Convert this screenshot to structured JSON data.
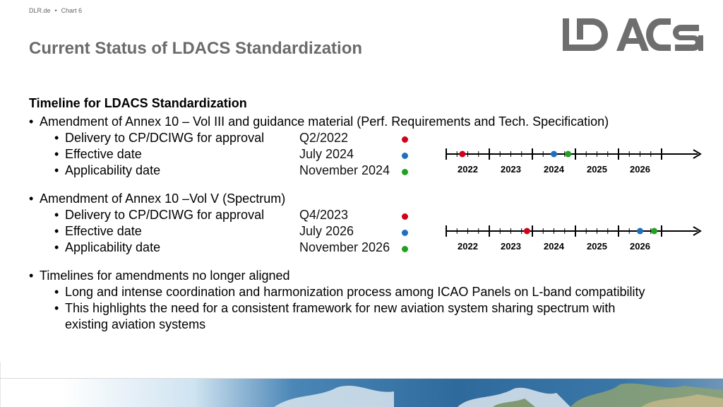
{
  "header": {
    "site": "DLR.de",
    "separator": "•",
    "chart_label": "Chart 6"
  },
  "title": "Current Status of LDACS Standardization",
  "logo": {
    "text": "LDACS"
  },
  "section": {
    "heading": "Timeline for LDACS Standardization",
    "groups": [
      {
        "bullet": "Amendment of Annex 10 – Vol III and guidance material (Perf. Requirements and Tech. Specification)",
        "items": [
          {
            "label": "Delivery to CP/DCIWG for approval",
            "value": "Q2/2022",
            "color": "#d0021b"
          },
          {
            "label": "Effective date",
            "value": "July 2024",
            "color": "#1f6fc0"
          },
          {
            "label": "Applicability date",
            "value": "November 2024",
            "color": "#1fa21f"
          }
        ],
        "timeline": {
          "years": [
            "2022",
            "2023",
            "2024",
            "2025",
            "2026"
          ],
          "markers": [
            {
              "year_fraction": 2022.375,
              "color": "#d0021b"
            },
            {
              "year_fraction": 2024.5,
              "color": "#1f6fc0"
            },
            {
              "year_fraction": 2024.83,
              "color": "#1fa21f"
            }
          ]
        }
      },
      {
        "bullet": "Amendment of Annex 10 –Vol V (Spectrum)",
        "items": [
          {
            "label": "Delivery to CP/DCIWG for approval",
            "value": "Q4/2023",
            "color": "#d0021b"
          },
          {
            "label": "Effective date",
            "value": "July 2026",
            "color": "#1f6fc0"
          },
          {
            "label": "Applicability date",
            "value": "November 2026",
            "color": "#1fa21f"
          }
        ],
        "timeline": {
          "years": [
            "2022",
            "2023",
            "2024",
            "2025",
            "2026"
          ],
          "markers": [
            {
              "year_fraction": 2023.875,
              "color": "#d0021b"
            },
            {
              "year_fraction": 2026.5,
              "color": "#1f6fc0"
            },
            {
              "year_fraction": 2026.83,
              "color": "#1fa21f"
            }
          ]
        }
      }
    ],
    "closing": {
      "bullet": "Timelines for amendments no longer aligned",
      "subs": [
        "Long and intense coordination and harmonization process among ICAO Panels on L-band compatibility",
        "This highlights the need for a consistent framework for new aviation system sharing spectrum with",
        "existing aviation systems"
      ]
    }
  },
  "colors": {
    "title_gray": "#6b6b6b",
    "red": "#d0021b",
    "blue": "#1f6fc0",
    "green": "#1fa21f"
  }
}
